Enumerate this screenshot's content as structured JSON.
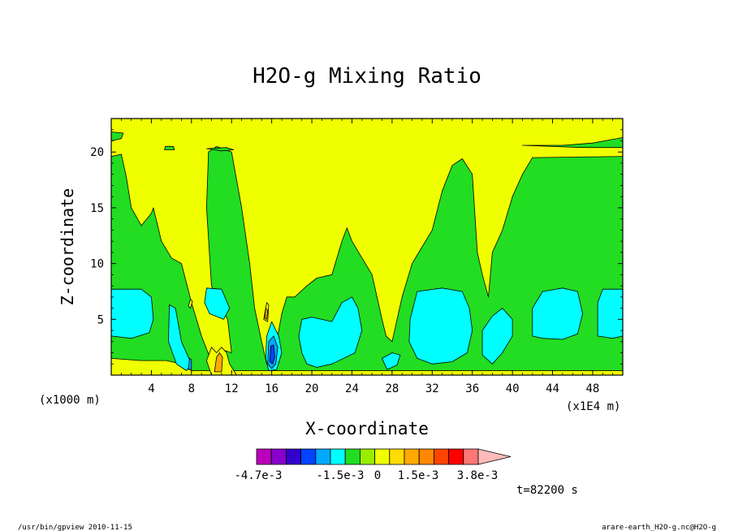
{
  "chart_data": {
    "type": "heatmap",
    "title": "H2O-g Mixing Ratio",
    "xlabel": "X-coordinate",
    "ylabel": "Z-coordinate",
    "x_unit_label": "(x1000 m)",
    "x_scale_label": "(x1E4 m)",
    "xlim": [
      0,
      51
    ],
    "ylim": [
      0,
      23
    ],
    "x_ticks": [
      4,
      8,
      12,
      16,
      20,
      24,
      28,
      32,
      36,
      40,
      44,
      48
    ],
    "y_ticks": [
      5,
      10,
      15,
      20
    ],
    "x_tick_labels": [
      "4",
      "8",
      "12",
      "16",
      "20",
      "24",
      "28",
      "32",
      "36",
      "40",
      "44",
      "48"
    ],
    "y_tick_labels": [
      "5",
      "10",
      "15",
      "20"
    ],
    "background_color": "#f0ff00",
    "levels": [
      {
        "name": "green",
        "color": "#22dd22",
        "regions": [
          [
            [
              0.0,
              0.0
            ],
            [
              0.0,
              19.6
            ],
            [
              1.0,
              19.8
            ],
            [
              1.5,
              17.8
            ],
            [
              2.0,
              15.0
            ],
            [
              3.0,
              13.4
            ],
            [
              4.0,
              14.5
            ],
            [
              4.2,
              15.0
            ],
            [
              5.0,
              12.0
            ],
            [
              6.0,
              10.5
            ],
            [
              7.0,
              10.0
            ],
            [
              8.0,
              6.5
            ],
            [
              9.0,
              3.5
            ],
            [
              10.0,
              1.2
            ],
            [
              11.0,
              2.3
            ],
            [
              12.0,
              2.0
            ],
            [
              11.6,
              5.0
            ],
            [
              10.0,
              8.0
            ],
            [
              9.5,
              15.0
            ],
            [
              9.7,
              20.0
            ],
            [
              10.5,
              20.5
            ],
            [
              12.0,
              20.0
            ],
            [
              13.0,
              15.0
            ],
            [
              13.8,
              10.0
            ],
            [
              14.3,
              6.0
            ],
            [
              15.0,
              3.0
            ],
            [
              15.5,
              1.0
            ],
            [
              16.5,
              3.0
            ],
            [
              17.0,
              5.5
            ],
            [
              17.5,
              7.0
            ],
            [
              18.3,
              7.0
            ],
            [
              19.5,
              8.0
            ],
            [
              20.5,
              8.7
            ],
            [
              22.0,
              9.0
            ],
            [
              23.0,
              12.0
            ],
            [
              23.5,
              13.2
            ],
            [
              24.0,
              12.0
            ],
            [
              25.0,
              10.5
            ],
            [
              26.0,
              9.0
            ],
            [
              27.0,
              5.0
            ],
            [
              27.4,
              3.5
            ],
            [
              28.0,
              3.0
            ],
            [
              29.0,
              7.0
            ],
            [
              30.0,
              10.0
            ],
            [
              31.0,
              11.5
            ],
            [
              32.0,
              13.0
            ],
            [
              33.0,
              16.5
            ],
            [
              34.0,
              18.8
            ],
            [
              35.0,
              19.4
            ],
            [
              36.0,
              18.0
            ],
            [
              36.5,
              11.0
            ],
            [
              37.0,
              9.0
            ],
            [
              37.6,
              7.0
            ],
            [
              38.0,
              11.0
            ],
            [
              39.0,
              13.0
            ],
            [
              40.0,
              16.0
            ],
            [
              41.0,
              18.0
            ],
            [
              42.0,
              19.5
            ],
            [
              51.0,
              19.6
            ],
            [
              51.0,
              0.0
            ]
          ]
        ]
      },
      {
        "name": "green-top",
        "color": "#22dd22",
        "regions": [
          [
            [
              0.0,
              21.0
            ],
            [
              1.0,
              21.2
            ],
            [
              1.2,
              21.7
            ],
            [
              0.0,
              21.8
            ]
          ],
          [
            [
              41.0,
              20.6
            ],
            [
              45.0,
              20.6
            ],
            [
              48.0,
              20.8
            ],
            [
              51.0,
              21.3
            ],
            [
              51.0,
              20.4
            ],
            [
              47.0,
              20.4
            ]
          ],
          [
            [
              5.3,
              20.2
            ],
            [
              6.3,
              20.2
            ],
            [
              6.2,
              20.5
            ],
            [
              5.4,
              20.5
            ]
          ],
          [
            [
              9.5,
              20.3
            ],
            [
              11.5,
              20.4
            ],
            [
              12.2,
              20.2
            ],
            [
              11.0,
              20.1
            ]
          ]
        ]
      },
      {
        "name": "green-floor",
        "color": "#22dd22",
        "regions": [
          [
            [
              0.0,
              0.4
            ],
            [
              51.0,
              0.4
            ],
            [
              51.0,
              0.0
            ],
            [
              0.0,
              0.0
            ]
          ]
        ]
      },
      {
        "name": "yellow-bottom",
        "color": "#f0ff00",
        "regions": [
          [
            [
              0.0,
              0.0
            ],
            [
              0.0,
              1.5
            ],
            [
              3.0,
              1.3
            ],
            [
              5.5,
              1.3
            ],
            [
              7.0,
              1.0
            ],
            [
              8.0,
              0.4
            ],
            [
              51.0,
              0.4
            ],
            [
              51.0,
              0.0
            ]
          ],
          [
            [
              10.0,
              0.0
            ],
            [
              9.5,
              1.3
            ],
            [
              10.0,
              2.5
            ],
            [
              10.5,
              2.0
            ],
            [
              11.0,
              2.5
            ],
            [
              11.5,
              2.0
            ],
            [
              11.8,
              1.0
            ],
            [
              12.5,
              0.0
            ]
          ],
          [
            [
              15.2,
              5.0
            ],
            [
              15.5,
              6.5
            ],
            [
              15.7,
              6.3
            ],
            [
              15.6,
              4.8
            ]
          ],
          [
            [
              7.7,
              6.2
            ],
            [
              7.9,
              6.8
            ],
            [
              8.1,
              6.6
            ],
            [
              7.9,
              6.0
            ]
          ]
        ]
      },
      {
        "name": "orange",
        "color": "#ffaa00",
        "regions": [
          [
            [
              10.3,
              0.3
            ],
            [
              10.5,
              1.6
            ],
            [
              10.8,
              2.0
            ],
            [
              11.1,
              1.6
            ],
            [
              11.0,
              0.3
            ]
          ],
          [
            [
              15.3,
              5.1
            ],
            [
              15.4,
              6.0
            ],
            [
              15.6,
              5.8
            ],
            [
              15.5,
              5.0
            ]
          ]
        ]
      },
      {
        "name": "cyan",
        "color": "#00ffff",
        "regions": [
          [
            [
              0.0,
              3.5
            ],
            [
              0.0,
              7.7
            ],
            [
              3.0,
              7.7
            ],
            [
              4.0,
              7.0
            ],
            [
              4.2,
              5.0
            ],
            [
              3.8,
              3.8
            ],
            [
              2.0,
              3.3
            ]
          ],
          [
            [
              5.8,
              6.3
            ],
            [
              5.7,
              3.0
            ],
            [
              6.5,
              1.0
            ],
            [
              7.5,
              0.4
            ],
            [
              8.0,
              1.0
            ],
            [
              7.0,
              3.0
            ],
            [
              6.4,
              6.0
            ]
          ],
          [
            [
              9.5,
              7.8
            ],
            [
              11.0,
              7.7
            ],
            [
              11.8,
              6.0
            ],
            [
              11.2,
              5.0
            ],
            [
              9.8,
              5.5
            ],
            [
              9.3,
              6.5
            ]
          ],
          [
            [
              16.0,
              4.8
            ],
            [
              16.7,
              3.5
            ],
            [
              17.0,
              2.0
            ],
            [
              16.5,
              0.5
            ],
            [
              15.7,
              0.4
            ],
            [
              15.4,
              1.5
            ],
            [
              15.5,
              3.5
            ]
          ],
          [
            [
              19.0,
              5.0
            ],
            [
              20.0,
              5.2
            ],
            [
              22.0,
              4.8
            ],
            [
              23.0,
              6.5
            ],
            [
              24.0,
              7.0
            ],
            [
              24.6,
              6.0
            ],
            [
              25.0,
              4.0
            ],
            [
              24.3,
              2.0
            ],
            [
              22.0,
              1.0
            ],
            [
              20.5,
              0.7
            ],
            [
              19.5,
              1.0
            ],
            [
              19.0,
              2.0
            ],
            [
              18.7,
              3.5
            ]
          ],
          [
            [
              27.0,
              1.5
            ],
            [
              28.0,
              2.0
            ],
            [
              28.8,
              1.8
            ],
            [
              28.5,
              0.9
            ],
            [
              27.5,
              0.5
            ]
          ],
          [
            [
              29.8,
              5.0
            ],
            [
              30.5,
              7.5
            ],
            [
              33.0,
              7.8
            ],
            [
              35.0,
              7.5
            ],
            [
              35.7,
              6.0
            ],
            [
              36.0,
              4.0
            ],
            [
              35.5,
              2.0
            ],
            [
              34.0,
              1.2
            ],
            [
              32.0,
              1.0
            ],
            [
              30.5,
              1.5
            ],
            [
              29.7,
              3.0
            ]
          ],
          [
            [
              37.0,
              1.8
            ],
            [
              37.0,
              4.0
            ],
            [
              38.0,
              5.3
            ],
            [
              39.0,
              6.0
            ],
            [
              40.0,
              5.0
            ],
            [
              40.0,
              3.5
            ],
            [
              39.0,
              2.0
            ],
            [
              38.0,
              1.0
            ]
          ],
          [
            [
              42.0,
              3.5
            ],
            [
              42.0,
              6.0
            ],
            [
              43.0,
              7.5
            ],
            [
              45.0,
              7.8
            ],
            [
              46.5,
              7.5
            ],
            [
              47.0,
              5.5
            ],
            [
              46.5,
              3.7
            ],
            [
              45.0,
              3.2
            ],
            [
              43.0,
              3.3
            ]
          ],
          [
            [
              48.5,
              3.5
            ],
            [
              48.5,
              6.5
            ],
            [
              49.0,
              7.7
            ],
            [
              51.0,
              7.7
            ],
            [
              51.0,
              3.5
            ],
            [
              50.0,
              3.3
            ]
          ]
        ]
      },
      {
        "name": "light-blue",
        "color": "#00aaff",
        "regions": [
          [
            [
              15.6,
              1.0
            ],
            [
              15.7,
              3.0
            ],
            [
              16.2,
              3.5
            ],
            [
              16.6,
              2.5
            ],
            [
              16.4,
              1.0
            ],
            [
              16.0,
              0.6
            ]
          ],
          [
            [
              7.7,
              0.5
            ],
            [
              7.8,
              1.5
            ],
            [
              8.0,
              1.4
            ],
            [
              8.0,
              0.5
            ]
          ]
        ]
      },
      {
        "name": "blue",
        "color": "#0044ff",
        "regions": [
          [
            [
              15.8,
              1.2
            ],
            [
              15.9,
              2.6
            ],
            [
              16.2,
              2.7
            ],
            [
              16.3,
              1.6
            ],
            [
              16.1,
              1.0
            ]
          ]
        ]
      }
    ],
    "colorbar": {
      "colors": [
        "#bb00bb",
        "#8800cc",
        "#3300cc",
        "#0044ff",
        "#00aaff",
        "#00ffff",
        "#22dd22",
        "#99ee00",
        "#f0ff00",
        "#ffdd00",
        "#ffaa00",
        "#ff8800",
        "#ff4400",
        "#ff0000",
        "#ff7777",
        "#ffbbbb"
      ],
      "labels": [
        "-4.7e-3",
        "-1.5e-3",
        "0",
        "1.5e-3",
        "3.8e-3"
      ]
    },
    "time_label": "t=82200 s"
  },
  "footer": {
    "left": "/usr/bin/gpview  2010-11-15",
    "right": "arare-earth_H2O-g.nc@H2O-g"
  }
}
